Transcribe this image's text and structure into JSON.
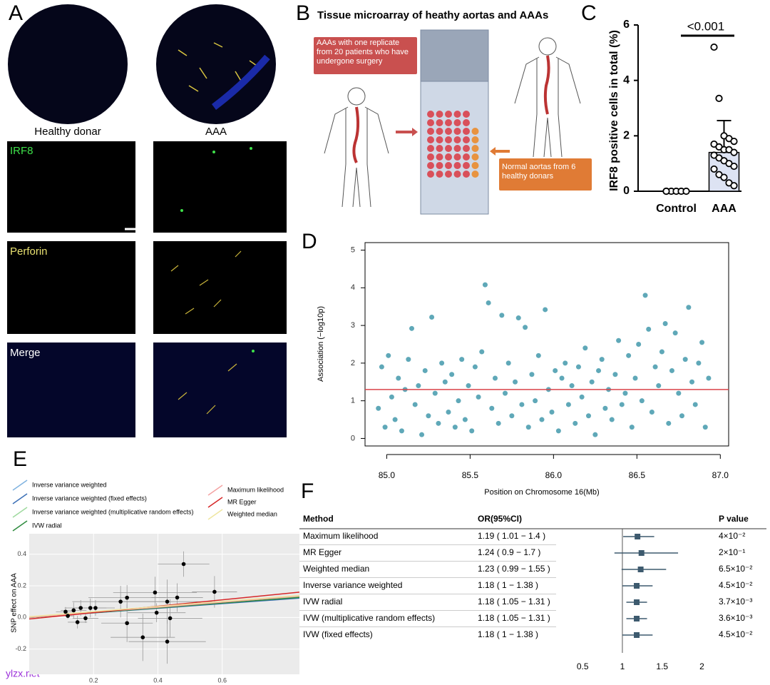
{
  "panel_a": {
    "label": "A",
    "columns": [
      "Healthy donar",
      "AAA"
    ],
    "rows": [
      "IRF8",
      "Perforin",
      "Merge"
    ]
  },
  "panel_b": {
    "label": "B",
    "title": "Tissue microarray of heathy aortas and AAAs",
    "aaa_note": "AAAs with one replicate from 20 patients who have undergone surgery",
    "normal_note": "Normal aortas from 6 healthy donars"
  },
  "watermark": "ylzx.net",
  "chart_data": [
    {
      "panel": "C",
      "type": "bar",
      "ylabel": "IRF8 positive cells in total (%)",
      "annotation": "<0.001",
      "categories": [
        "Control",
        "AAA"
      ],
      "values": [
        0,
        1.4
      ],
      "errors": [
        0,
        1.15
      ],
      "color": "#dde3f3",
      "points": [
        [
          0,
          0,
          0,
          0,
          0,
          0
        ],
        [
          5.2,
          3.35,
          2.0,
          1.9,
          1.8,
          1.7,
          1.6,
          1.5,
          1.5,
          1.4,
          1.3,
          1.2,
          1.1,
          1.0,
          0.9,
          0.8,
          0.6,
          0.5,
          0.3,
          0.2
        ]
      ],
      "ylim": [
        0,
        6
      ],
      "yticks": [
        0,
        2,
        4,
        6
      ]
    },
    {
      "panel": "D",
      "type": "scatter",
      "xlabel": "Position on Chromosome 16(Mb)",
      "ylabel": "Association (−log10p)",
      "color": "#5fa8b8",
      "threshold": 1.3,
      "threshold_color": "#d9434a",
      "x": [
        84.95,
        84.97,
        84.99,
        85.01,
        85.03,
        85.05,
        85.07,
        85.09,
        85.11,
        85.13,
        85.15,
        85.17,
        85.19,
        85.21,
        85.23,
        85.25,
        85.27,
        85.29,
        85.31,
        85.33,
        85.35,
        85.37,
        85.39,
        85.41,
        85.43,
        85.45,
        85.47,
        85.49,
        85.51,
        85.53,
        85.55,
        85.57,
        85.59,
        85.61,
        85.63,
        85.65,
        85.67,
        85.69,
        85.71,
        85.73,
        85.75,
        85.77,
        85.79,
        85.81,
        85.83,
        85.85,
        85.87,
        85.89,
        85.91,
        85.93,
        85.95,
        85.97,
        85.99,
        86.01,
        86.03,
        86.05,
        86.07,
        86.09,
        86.11,
        86.13,
        86.15,
        86.17,
        86.19,
        86.21,
        86.23,
        86.25,
        86.27,
        86.29,
        86.31,
        86.33,
        86.35,
        86.37,
        86.39,
        86.41,
        86.43,
        86.45,
        86.47,
        86.49,
        86.51,
        86.53,
        86.55,
        86.57,
        86.59,
        86.61,
        86.63,
        86.65,
        86.67,
        86.69,
        86.71,
        86.73,
        86.75,
        86.77,
        86.79,
        86.81,
        86.83,
        86.85,
        86.87,
        86.89,
        86.91,
        86.93
      ],
      "values": [
        0.8,
        1.9,
        0.3,
        2.2,
        1.1,
        0.5,
        1.6,
        0.2,
        1.3,
        2.1,
        2.92,
        0.9,
        1.4,
        0.1,
        1.8,
        0.6,
        3.22,
        1.2,
        0.4,
        2.0,
        1.5,
        0.7,
        1.7,
        0.3,
        1.0,
        2.1,
        0.5,
        1.4,
        0.2,
        1.9,
        1.1,
        2.3,
        4.08,
        3.6,
        0.8,
        1.6,
        0.4,
        3.27,
        1.2,
        2.0,
        0.6,
        1.5,
        3.2,
        0.9,
        2.95,
        0.3,
        1.7,
        1.0,
        2.2,
        0.5,
        3.42,
        1.3,
        0.7,
        1.8,
        0.2,
        1.6,
        2.0,
        0.9,
        1.4,
        0.4,
        1.9,
        1.1,
        2.4,
        0.6,
        1.5,
        0.1,
        1.8,
        2.1,
        0.8,
        1.3,
        0.5,
        1.7,
        2.6,
        0.9,
        1.2,
        2.2,
        0.3,
        1.6,
        2.5,
        1.0,
        3.8,
        2.9,
        0.7,
        1.9,
        1.4,
        2.3,
        3.05,
        0.4,
        1.8,
        2.8,
        1.2,
        0.6,
        2.1,
        3.48,
        1.5,
        0.9,
        2.0,
        2.55,
        0.3,
        1.6
      ],
      "xlim": [
        84.87,
        87.05
      ],
      "xticks": [
        {
          "value": 85,
          "label": "85.0"
        },
        85.5,
        {
          "value": 86,
          "label": "86.0"
        },
        86.5,
        {
          "value": 87,
          "label": "87.0"
        }
      ],
      "ylim": [
        -0.2,
        5.2
      ],
      "yticks": [
        0,
        1,
        2,
        3,
        4,
        5
      ]
    },
    {
      "panel": "E",
      "type": "scatter",
      "ylabel": "SNP effect on AAA",
      "x": [
        0.113,
        0.12,
        0.138,
        0.15,
        0.16,
        0.175,
        0.19,
        0.206,
        0.284,
        0.304,
        0.304,
        0.353,
        0.391,
        0.396,
        0.429,
        0.438,
        0.429,
        0.46,
        0.48,
        0.576
      ],
      "values": [
        0.036,
        0.01,
        0.045,
        -0.03,
        0.06,
        -0.005,
        0.06,
        0.06,
        0.1,
        0.125,
        -0.036,
        -0.126,
        0.158,
        0.03,
        0.1,
        -0.005,
        -0.153,
        0.126,
        0.338,
        0.162
      ],
      "x_err": [
        0.03,
        0.02,
        0.04,
        0.03,
        0.05,
        0.04,
        0.05,
        0.06,
        0.15,
        0.12,
        0.08,
        0.1,
        0.13,
        0.09,
        0.14,
        0.1,
        0.12,
        0.08,
        0.08,
        0.07
      ],
      "y_err": [
        0.03,
        0.02,
        0.05,
        0.04,
        0.05,
        0.03,
        0.06,
        0.05,
        0.1,
        0.08,
        0.12,
        0.15,
        0.1,
        0.06,
        0.14,
        0.12,
        0.14,
        0.09,
        0.08,
        0.1
      ],
      "series": [
        {
          "name": "Inverse variance weighted",
          "color": "#7fb3e0",
          "x": [
            0,
            0.84
          ],
          "values": [
            0,
            0.125
          ]
        },
        {
          "name": "Inverse variance weighted (fixed effects)",
          "color": "#3b6fb6",
          "x": [
            0,
            0.84
          ],
          "values": [
            0,
            0.122
          ]
        },
        {
          "name": "Inverse variance weighted (multiplicative random effects)",
          "color": "#9ed99e",
          "x": [
            0,
            0.84
          ],
          "values": [
            0,
            0.13
          ]
        },
        {
          "name": "IVW radial",
          "color": "#2e8b3e",
          "x": [
            0,
            0.84
          ],
          "values": [
            0,
            0.127
          ]
        },
        {
          "name": "Maximum likelihood",
          "color": "#f4a3a3",
          "x": [
            0,
            0.84
          ],
          "values": [
            0,
            0.135
          ]
        },
        {
          "name": "MR Egger",
          "color": "#d62728",
          "x": [
            0,
            0.84
          ],
          "values": [
            -0.01,
            0.16
          ]
        },
        {
          "name": "Weighted median",
          "color": "#efe6a0",
          "x": [
            0,
            0.84
          ],
          "values": [
            0.005,
            0.14
          ]
        }
      ],
      "xlim": [
        0,
        0.84
      ],
      "xticks": [
        0.2,
        0.4,
        0.6
      ],
      "ylim": [
        -0.36,
        0.53
      ],
      "yticks": [
        -0.2,
        {
          "value": 0,
          "label": "0.0"
        },
        0.2,
        0.4
      ]
    },
    {
      "panel": "F",
      "type": "forest",
      "headers": [
        "Method",
        "OR(95%CI)",
        "P value"
      ],
      "color": "#3d5a6e",
      "reference": 1,
      "rows": [
        {
          "method": "Maximum likelihood",
          "or_ci": "1.19 ( 1.01 − 1.4 )",
          "or": 1.19,
          "lo": 1.01,
          "hi": 1.4,
          "p": "4×10⁻²"
        },
        {
          "method": "MR Egger",
          "or_ci": "1.24 ( 0.9 − 1.7 )",
          "or": 1.24,
          "lo": 0.9,
          "hi": 1.7,
          "p": "2×10⁻¹"
        },
        {
          "method": "Weighted median",
          "or_ci": "1.23 ( 0.99 − 1.55 )",
          "or": 1.23,
          "lo": 0.99,
          "hi": 1.55,
          "p": "6.5×10⁻²"
        },
        {
          "method": "Inverse variance weighted",
          "or_ci": "1.18 ( 1 − 1.38 )",
          "or": 1.18,
          "lo": 1,
          "hi": 1.38,
          "p": "4.5×10⁻²"
        },
        {
          "method": "IVW radial",
          "or_ci": "1.18 ( 1.05 − 1.31 )",
          "or": 1.18,
          "lo": 1.05,
          "hi": 1.31,
          "p": "3.7×10⁻³"
        },
        {
          "method": "IVW (multiplicative random effects)",
          "or_ci": "1.18 ( 1.05 − 1.31 )",
          "or": 1.18,
          "lo": 1.05,
          "hi": 1.31,
          "p": "3.6×10⁻³"
        },
        {
          "method": "IVW (fixed effects)",
          "or_ci": "1.18 ( 1 − 1.38 )",
          "or": 1.18,
          "lo": 1,
          "hi": 1.38,
          "p": "4.5×10⁻²"
        }
      ],
      "xlim": [
        0.4,
        2.3
      ],
      "xticks": [
        0.5,
        1,
        1.5,
        2
      ]
    }
  ]
}
